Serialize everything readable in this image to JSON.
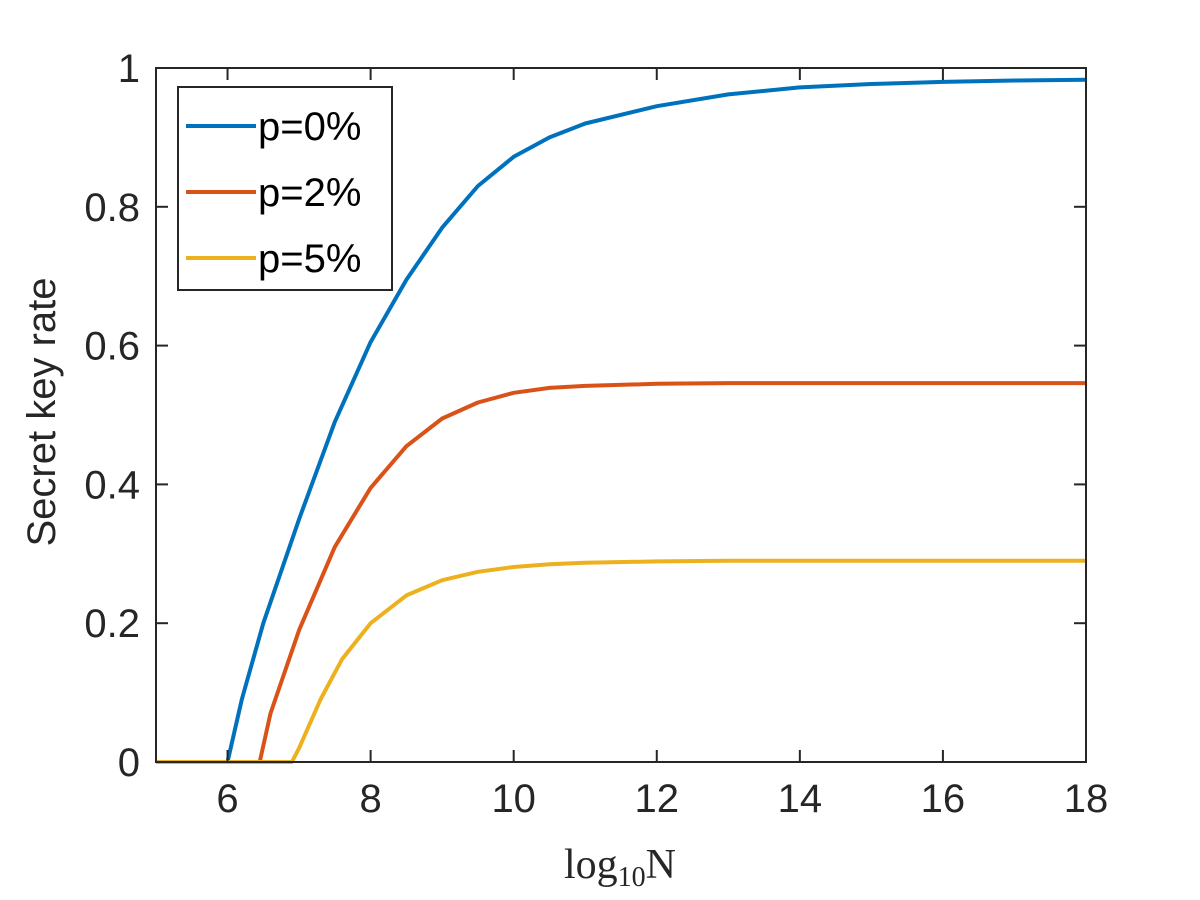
{
  "chart_data": {
    "type": "line",
    "title": "",
    "xlabel": "log10N",
    "xlabel_parts": {
      "base": "log",
      "sub": "10",
      "var": "N"
    },
    "ylabel": "Secret key rate",
    "xlim": [
      5,
      18
    ],
    "ylim": [
      0,
      1
    ],
    "xticks": [
      6,
      8,
      10,
      12,
      14,
      16,
      18
    ],
    "yticks": [
      0,
      0.2,
      0.4,
      0.6,
      0.8,
      1
    ],
    "ytick_labels": [
      "0",
      "0.2",
      "0.4",
      "0.6",
      "0.8",
      "1"
    ],
    "legend_position": "top-left",
    "grid": false,
    "series": [
      {
        "name": "p=0%",
        "color": "#0072BD",
        "x": [
          5,
          6,
          6.2,
          6.5,
          7,
          7.5,
          8,
          8.5,
          9,
          9.5,
          10,
          10.5,
          11,
          12,
          13,
          14,
          15,
          16,
          17,
          18
        ],
        "y": [
          0,
          0,
          0.09,
          0.2,
          0.35,
          0.49,
          0.605,
          0.695,
          0.77,
          0.83,
          0.872,
          0.9,
          0.92,
          0.945,
          0.962,
          0.972,
          0.977,
          0.98,
          0.982,
          0.983
        ]
      },
      {
        "name": "p=2%",
        "color": "#D95319",
        "x": [
          5,
          6.45,
          6.6,
          7,
          7.5,
          8,
          8.5,
          9,
          9.5,
          10,
          10.5,
          11,
          12,
          13,
          14,
          15,
          16,
          17,
          18
        ],
        "y": [
          0,
          0,
          0.07,
          0.19,
          0.31,
          0.395,
          0.455,
          0.495,
          0.518,
          0.532,
          0.539,
          0.542,
          0.545,
          0.546,
          0.546,
          0.546,
          0.546,
          0.546,
          0.546
        ]
      },
      {
        "name": "p=5%",
        "color": "#EDB120",
        "x": [
          5,
          6.9,
          7,
          7.3,
          7.6,
          8,
          8.5,
          9,
          9.5,
          10,
          10.5,
          11,
          12,
          13,
          14,
          15,
          16,
          17,
          18
        ],
        "y": [
          0,
          0,
          0.02,
          0.09,
          0.148,
          0.2,
          0.24,
          0.262,
          0.274,
          0.281,
          0.285,
          0.287,
          0.289,
          0.29,
          0.29,
          0.29,
          0.29,
          0.29,
          0.29
        ]
      }
    ]
  }
}
